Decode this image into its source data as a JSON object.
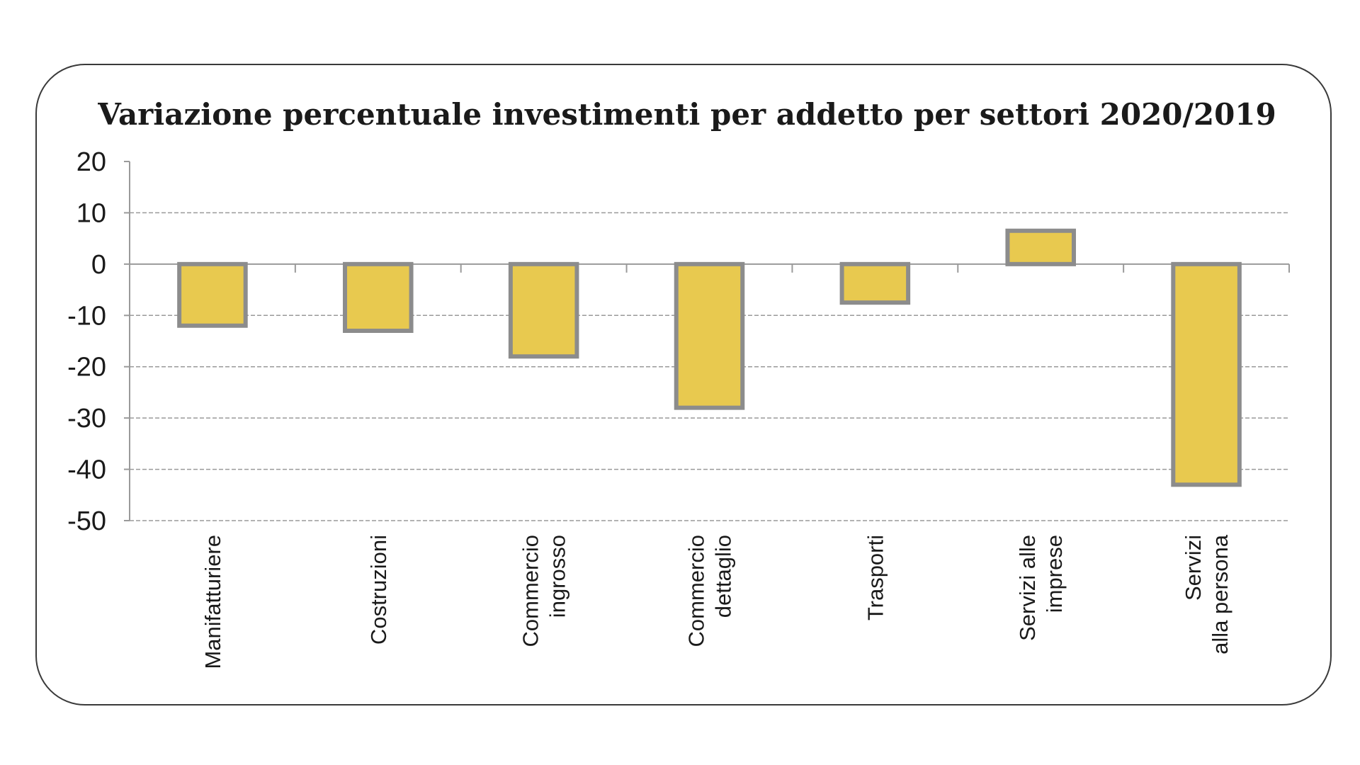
{
  "chart_data": {
    "type": "bar",
    "title": "Variazione percentuale investimenti per addetto per settori 2020/2019",
    "xlabel": "",
    "ylabel": "",
    "ylim": [
      -50,
      20
    ],
    "yticks": [
      20,
      10,
      0,
      -10,
      -20,
      -30,
      -40,
      -50
    ],
    "grid": true,
    "legend": "none",
    "categories": [
      [
        "Manifatturiere"
      ],
      [
        "Costruzioni"
      ],
      [
        "Commercio",
        "ingrosso"
      ],
      [
        "Commercio",
        "dettaglio"
      ],
      [
        "Trasporti"
      ],
      [
        "Servizi alle",
        "imprese"
      ],
      [
        "Servizi",
        "alla persona"
      ]
    ],
    "values": [
      -12,
      -13,
      -18,
      -28,
      -7.5,
      6.5,
      -43
    ],
    "colors": {
      "bar_fill": "#E8C94F",
      "bar_stroke": "#8C8C8C",
      "axis": "#9A9A9A",
      "grid": "#9A9A9A"
    }
  }
}
